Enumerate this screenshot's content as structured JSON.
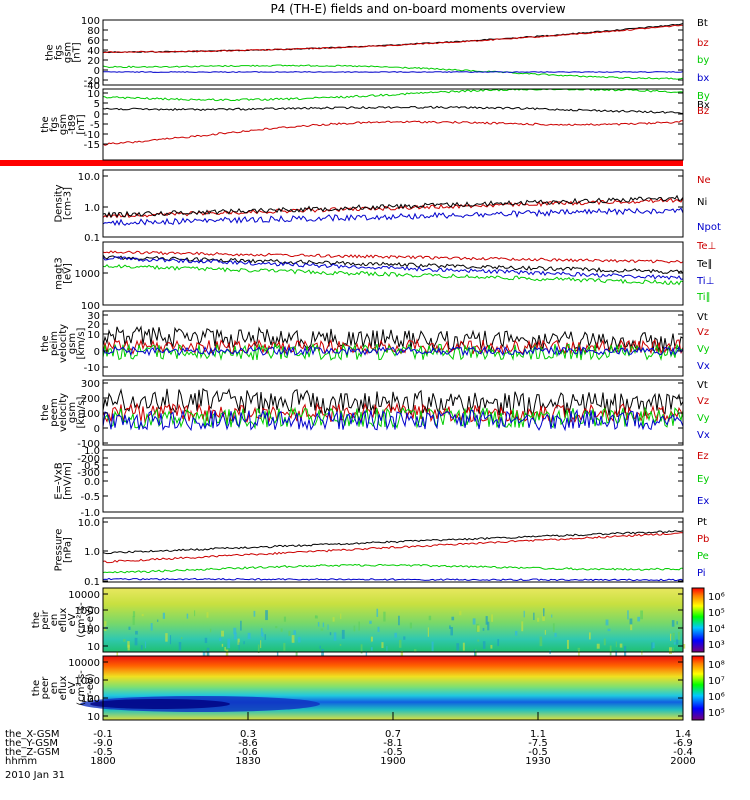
{
  "title": "P4 (TH-E) fields and on-board moments overview",
  "chart_data": {
    "type": "line",
    "title": "P4 (TH-E) fields and on-board moments overview",
    "x_axis": {
      "rows": [
        {
          "label": "the_X-GSM",
          "values": [
            "-0.1",
            "0.3",
            "0.7",
            "1.1",
            "1.4"
          ]
        },
        {
          "label": "the_Y-GSM",
          "values": [
            "-9.0",
            "-8.6",
            "-8.1",
            "-7.5",
            "-6.9"
          ]
        },
        {
          "label": "the_Z-GSM",
          "values": [
            "-0.5",
            "-0.6",
            "-0.5",
            "-0.5",
            "-0.4"
          ]
        },
        {
          "label": "hhmm",
          "values": [
            "1800",
            "1830",
            "1900",
            "1930",
            "2000"
          ]
        }
      ],
      "date": "2010 Jan 31"
    },
    "panels": [
      {
        "id": "fgs-gsm",
        "ylabel": [
          "the",
          "fgs",
          "gsm",
          "[nT]"
        ],
        "scale": "linear",
        "yticks": [
          "100",
          "80",
          "60",
          "40",
          "20",
          "0",
          "-20",
          "-40"
        ],
        "series": [
          {
            "name": "Bt",
            "color": "#000000"
          },
          {
            "name": "bz",
            "color": "#cc0000"
          },
          {
            "name": "by",
            "color": "#00cc00"
          },
          {
            "name": "bx",
            "color": "#0000cc"
          }
        ]
      },
      {
        "id": "fgs-gsm-t89",
        "ylabel": [
          "the",
          "fgs",
          "gsm",
          "-t89",
          "[nT]"
        ],
        "scale": "linear",
        "yticks": [
          "10",
          "5",
          "0",
          "-5",
          "-10",
          "-15"
        ],
        "series": [
          {
            "name": "By",
            "color": "#00cc00"
          },
          {
            "name": "Bx",
            "color": "#000000"
          },
          {
            "name": "Bz",
            "color": "#cc0000"
          }
        ]
      },
      {
        "id": "density",
        "ylabel": [
          "Density",
          "[cm-3]"
        ],
        "scale": "log",
        "yticks": [
          "10.0",
          "1.0",
          "0.1"
        ],
        "series": [
          {
            "name": "Ne",
            "color": "#cc0000"
          },
          {
            "name": "Ni",
            "color": "#000000"
          },
          {
            "name": "Npot",
            "color": "#0000cc"
          }
        ]
      },
      {
        "id": "temperature",
        "ylabel": [
          "magt3",
          "[eV]"
        ],
        "scale": "log",
        "yticks": [
          "1000",
          "100"
        ],
        "series": [
          {
            "name": "Te⊥",
            "color": "#cc0000"
          },
          {
            "name": "Te∥",
            "color": "#000000"
          },
          {
            "name": "Ti⊥",
            "color": "#0000cc"
          },
          {
            "name": "Ti∥",
            "color": "#00cc00"
          }
        ]
      },
      {
        "id": "peim-velocity",
        "ylabel": [
          "the",
          "peim",
          "velocity",
          "gsm",
          "[km/s]"
        ],
        "scale": "linear",
        "yticks": [
          "30",
          "20",
          "10",
          "0",
          "-10"
        ],
        "series": [
          {
            "name": "Vt",
            "color": "#000000"
          },
          {
            "name": "Vz",
            "color": "#cc0000"
          },
          {
            "name": "Vy",
            "color": "#00cc00"
          },
          {
            "name": "Vx",
            "color": "#0000cc"
          }
        ]
      },
      {
        "id": "peem-velocity",
        "ylabel": [
          "the",
          "peem",
          "velocity",
          "gsm",
          "[km/s]"
        ],
        "scale": "linear",
        "yticks": [
          "300",
          "200",
          "100",
          "0",
          "-100",
          "-200",
          "-300"
        ],
        "series": [
          {
            "name": "Vt",
            "color": "#000000"
          },
          {
            "name": "Vz",
            "color": "#cc0000"
          },
          {
            "name": "Vy",
            "color": "#00cc00"
          },
          {
            "name": "Vx",
            "color": "#0000cc"
          }
        ]
      },
      {
        "id": "efield",
        "ylabel": [
          "E=-VxB",
          "[mV/m]"
        ],
        "scale": "linear",
        "yticks": [
          "1.0",
          "0.5",
          "0.0",
          "-0.5",
          "-1.0"
        ],
        "series": [
          {
            "name": "Ez",
            "color": "#cc0000"
          },
          {
            "name": "Ey",
            "color": "#00cc00"
          },
          {
            "name": "Ex",
            "color": "#0000cc"
          }
        ]
      },
      {
        "id": "pressure",
        "ylabel": [
          "Pressure",
          "[nPa]"
        ],
        "scale": "log",
        "yticks": [
          "10.0",
          "1.0",
          "0.1"
        ],
        "series": [
          {
            "name": "Pt",
            "color": "#000000"
          },
          {
            "name": "Pb",
            "color": "#cc0000"
          },
          {
            "name": "Pe",
            "color": "#00cc00"
          },
          {
            "name": "Pi",
            "color": "#0000cc"
          }
        ]
      },
      {
        "id": "peir-spectrogram",
        "ylabel": [
          "the",
          "peir",
          "en",
          "eflux",
          "eV",
          "(cm²-s-",
          "sr-eV)"
        ],
        "scale": "log",
        "yticks": [
          "10000",
          "1000",
          "100",
          "10"
        ],
        "colorbar": [
          "10⁶",
          "10⁵",
          "10⁴",
          "10³"
        ]
      },
      {
        "id": "peer-spectrogram",
        "ylabel": [
          "the",
          "peer",
          "en",
          "eflux",
          "eV",
          "(cm²-s-",
          "sr-eV)"
        ],
        "scale": "log",
        "yticks": [
          "10000",
          "1000",
          "100",
          "10"
        ],
        "colorbar": [
          "10⁸",
          "10⁷",
          "10⁶",
          "10⁵"
        ]
      }
    ]
  }
}
